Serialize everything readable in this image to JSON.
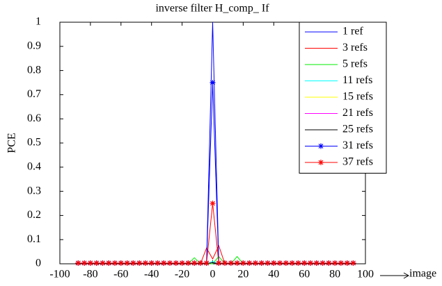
{
  "chart_data": {
    "type": "line",
    "title": "inverse filter H_comp_ If",
    "xlabel": "image",
    "ylabel": "PCE",
    "x": [
      -88,
      -84,
      -80,
      -76,
      -72,
      -68,
      -64,
      -60,
      -56,
      -52,
      -48,
      -44,
      -40,
      -36,
      -32,
      -28,
      -24,
      -20,
      -16,
      -12,
      -8,
      -4,
      0,
      4,
      8,
      12,
      16,
      20,
      24,
      28,
      32,
      36,
      40,
      44,
      48,
      52,
      56,
      60,
      64,
      68,
      72,
      76,
      80,
      84,
      88,
      92
    ],
    "series": [
      {
        "name": "1 ref",
        "color": "#0000ff",
        "marker": "none",
        "values": [
          0,
          0,
          0,
          0,
          0,
          0,
          0,
          0,
          0,
          0,
          0,
          0,
          0,
          0,
          0,
          0,
          0,
          0,
          0,
          0,
          0,
          0,
          1,
          0,
          0,
          0,
          0,
          0,
          0,
          0,
          0,
          0,
          0,
          0,
          0,
          0,
          0,
          0,
          0,
          0,
          0,
          0,
          0,
          0,
          0,
          0
        ]
      },
      {
        "name": "3 refs",
        "color": "#ff0000",
        "marker": "none",
        "values": [
          0,
          0,
          0,
          0,
          0,
          0,
          0,
          0,
          0,
          0,
          0,
          0,
          0,
          0,
          0,
          0,
          0,
          0,
          0,
          0,
          0,
          0.065,
          0.02,
          0.075,
          0,
          0,
          0,
          0,
          0,
          0,
          0,
          0,
          0,
          0,
          0,
          0,
          0,
          0,
          0,
          0,
          0,
          0,
          0,
          0,
          0,
          0
        ]
      },
      {
        "name": "5 refs",
        "color": "#00ee00",
        "marker": "none",
        "values": [
          0,
          0,
          0,
          0,
          0,
          0,
          0,
          0,
          0,
          0,
          0,
          0,
          0,
          0,
          0,
          0,
          0,
          0,
          0,
          0.025,
          0,
          0,
          0,
          0.03,
          0,
          0,
          0.03,
          0,
          0,
          0,
          0,
          0,
          0,
          0,
          0,
          0,
          0,
          0,
          0,
          0,
          0,
          0,
          0,
          0,
          0,
          0
        ]
      },
      {
        "name": "11 refs",
        "color": "#00ffff",
        "marker": "none",
        "values": [
          0,
          0,
          0,
          0,
          0,
          0,
          0,
          0,
          0,
          0,
          0,
          0,
          0,
          0,
          0,
          0,
          0,
          0,
          0,
          0,
          0,
          0,
          0.01,
          0,
          0,
          0,
          0,
          0,
          0,
          0,
          0,
          0,
          0,
          0,
          0,
          0,
          0,
          0,
          0,
          0,
          0,
          0,
          0,
          0,
          0,
          0
        ]
      },
      {
        "name": "15 refs",
        "color": "#ffff00",
        "marker": "none",
        "values": [
          0,
          0,
          0,
          0,
          0,
          0,
          0,
          0,
          0,
          0,
          0,
          0,
          0,
          0,
          0,
          0,
          0,
          0,
          0,
          0,
          0,
          0,
          0.005,
          0,
          0,
          0,
          0,
          0,
          0,
          0,
          0,
          0,
          0,
          0,
          0,
          0,
          0,
          0,
          0,
          0,
          0,
          0,
          0,
          0,
          0,
          0
        ]
      },
      {
        "name": "21 refs",
        "color": "#ff00ff",
        "marker": "none",
        "values": [
          0,
          0,
          0,
          0,
          0,
          0,
          0,
          0,
          0,
          0,
          0,
          0,
          0,
          0,
          0,
          0,
          0,
          0,
          0,
          0,
          0,
          0,
          0.005,
          0,
          0,
          0,
          0,
          0,
          0,
          0,
          0,
          0,
          0,
          0,
          0,
          0,
          0,
          0,
          0,
          0,
          0,
          0,
          0,
          0,
          0,
          0
        ]
      },
      {
        "name": "25 refs",
        "color": "#000000",
        "marker": "none",
        "values": [
          0,
          0,
          0,
          0,
          0,
          0,
          0,
          0,
          0,
          0,
          0,
          0,
          0,
          0,
          0,
          0,
          0,
          0,
          0,
          0,
          0,
          0,
          0.005,
          0,
          0,
          0,
          0,
          0,
          0,
          0,
          0,
          0,
          0,
          0,
          0,
          0,
          0,
          0,
          0,
          0,
          0,
          0,
          0,
          0,
          0,
          0
        ]
      },
      {
        "name": "31 refs",
        "color": "#0000ff",
        "marker": "star",
        "values": [
          0.003,
          0.003,
          0.003,
          0.003,
          0.003,
          0.003,
          0.003,
          0.003,
          0.003,
          0.003,
          0.003,
          0.003,
          0.003,
          0.003,
          0.003,
          0.003,
          0.003,
          0.003,
          0.003,
          0.003,
          0.003,
          0.003,
          0.75,
          0.003,
          0.003,
          0.003,
          0.003,
          0.003,
          0.003,
          0.003,
          0.003,
          0.003,
          0.003,
          0.003,
          0.003,
          0.003,
          0.003,
          0.003,
          0.003,
          0.003,
          0.003,
          0.003,
          0.003,
          0.003,
          0.003,
          0.003
        ]
      },
      {
        "name": "37 refs",
        "color": "#ff0000",
        "marker": "star",
        "values": [
          0.003,
          0.003,
          0.003,
          0.003,
          0.003,
          0.003,
          0.003,
          0.003,
          0.003,
          0.003,
          0.003,
          0.003,
          0.003,
          0.003,
          0.003,
          0.003,
          0.003,
          0.003,
          0.003,
          0.003,
          0.003,
          0.003,
          0.25,
          0.003,
          0.003,
          0.003,
          0.003,
          0.003,
          0.003,
          0.003,
          0.003,
          0.003,
          0.003,
          0.003,
          0.003,
          0.003,
          0.003,
          0.003,
          0.003,
          0.003,
          0.003,
          0.003,
          0.003,
          0.003,
          0.003,
          0.003
        ]
      }
    ],
    "xlim": [
      -100,
      100
    ],
    "xticks": [
      -100,
      -80,
      -60,
      -40,
      -20,
      0,
      20,
      40,
      60,
      80,
      100
    ],
    "ylim": [
      0,
      1
    ],
    "yticks": [
      0,
      0.1,
      0.2,
      0.3,
      0.4,
      0.5,
      0.6,
      0.7,
      0.8,
      0.9,
      1
    ],
    "grid": false,
    "legend": "northeast"
  }
}
